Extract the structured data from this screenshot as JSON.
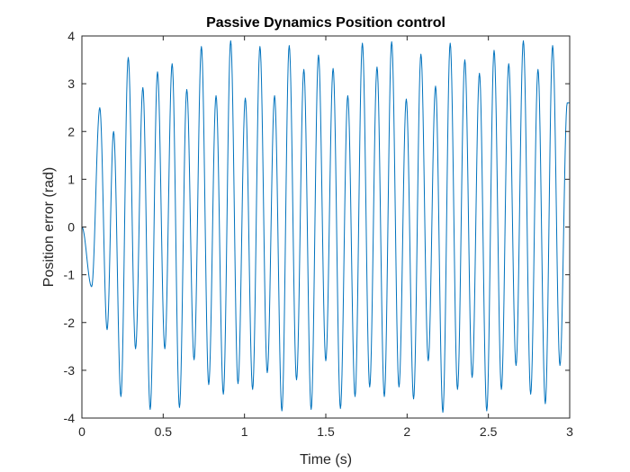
{
  "chart_data": {
    "type": "line",
    "title": "Passive Dynamics Position control",
    "xlabel": "Time (s)",
    "ylabel": "Position error (rad)",
    "xlim": [
      0,
      3
    ],
    "ylim": [
      -4,
      4
    ],
    "x_ticks": [
      "0",
      "0.5",
      "1",
      "1.5",
      "2",
      "2.5",
      "3"
    ],
    "y_ticks": [
      "-4",
      "-3",
      "-2",
      "-1",
      "0",
      "1",
      "2",
      "3",
      "4"
    ],
    "grid": false,
    "legend": "none",
    "line_color": "#0072BD",
    "series": [
      {
        "x": [
          0,
          0.06,
          0.11,
          0.155,
          0.195,
          0.24,
          0.285,
          0.33,
          0.375,
          0.42,
          0.465,
          0.51,
          0.555,
          0.6,
          0.645,
          0.69,
          0.735,
          0.78,
          0.825,
          0.87,
          0.915,
          0.96,
          1.005,
          1.05,
          1.095,
          1.14,
          1.185,
          1.23,
          1.275,
          1.32,
          1.365,
          1.41,
          1.455,
          1.5,
          1.545,
          1.59,
          1.635,
          1.68,
          1.725,
          1.77,
          1.815,
          1.86,
          1.905,
          1.95,
          1.995,
          2.04,
          2.085,
          2.13,
          2.175,
          2.22,
          2.265,
          2.31,
          2.355,
          2.4,
          2.445,
          2.49,
          2.535,
          2.58,
          2.625,
          2.67,
          2.715,
          2.76,
          2.805,
          2.85,
          2.895,
          2.94,
          2.985,
          3.0
        ],
        "y": [
          0,
          -1.25,
          2.5,
          -2.15,
          2.0,
          -3.55,
          3.55,
          -2.55,
          2.92,
          -3.82,
          3.25,
          -2.55,
          3.42,
          -3.78,
          2.88,
          -2.78,
          3.78,
          -3.3,
          2.75,
          -3.5,
          3.9,
          -3.28,
          2.7,
          -3.4,
          3.78,
          -3.05,
          2.75,
          -3.85,
          3.8,
          -3.2,
          3.3,
          -3.82,
          3.6,
          -2.8,
          3.32,
          -3.8,
          2.75,
          -3.55,
          3.85,
          -3.35,
          3.35,
          -3.55,
          3.88,
          -3.35,
          2.68,
          -3.6,
          3.62,
          -2.8,
          2.95,
          -3.88,
          3.85,
          -3.4,
          3.5,
          -3.15,
          3.22,
          -3.85,
          3.7,
          -3.4,
          3.42,
          -2.9,
          3.9,
          -3.5,
          3.3,
          -3.7,
          3.8,
          -2.9,
          2.6,
          2.6
        ]
      }
    ]
  }
}
